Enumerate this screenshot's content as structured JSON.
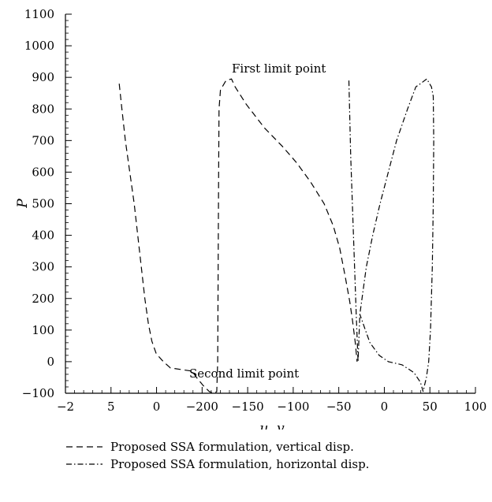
{
  "chart_data": {
    "type": "line",
    "xlabel": "u, v",
    "ylabel": "P",
    "ylim": [
      -100,
      1100
    ],
    "x_tick_labels": [
      "−2",
      "5",
      "0",
      "−200",
      "−150",
      "−100",
      "−50",
      "0",
      "50",
      "100"
    ],
    "y_ticks": [
      -100,
      0,
      100,
      200,
      300,
      400,
      500,
      600,
      700,
      800,
      900,
      1000,
      1100
    ],
    "y_tick_labels": [
      "−100",
      "0",
      "100",
      "200",
      "300",
      "400",
      "500",
      "600",
      "700",
      "800",
      "900",
      "1000",
      "1100"
    ],
    "annotations": [
      {
        "text": "First limit point"
      },
      {
        "text": "Second limit point"
      }
    ],
    "series": [
      {
        "name": "Proposed SSA formulation, vertical disp.",
        "style": "dashed",
        "points": [
          [
            4.0,
            880
          ],
          [
            3.7,
            800
          ],
          [
            3.3,
            700
          ],
          [
            2.8,
            600
          ],
          [
            2.3,
            500
          ],
          [
            1.9,
            400
          ],
          [
            1.5,
            300
          ],
          [
            1.1,
            200
          ],
          [
            0.7,
            120
          ],
          [
            0.3,
            65
          ],
          [
            -0.2,
            25
          ],
          [
            -1.0,
            0
          ],
          [
            -1.8,
            -20
          ],
          [
            -209,
            -30
          ],
          [
            -204,
            -50
          ],
          [
            -197,
            -75
          ],
          [
            -190,
            -95
          ],
          [
            -185,
            -100
          ],
          [
            -182,
            -95
          ],
          [
            -181,
            0
          ],
          [
            -180.5,
            300
          ],
          [
            -180,
            600
          ],
          [
            -179.5,
            800
          ],
          [
            -178,
            860
          ],
          [
            -172,
            890
          ],
          [
            -166,
            895
          ],
          [
            -162,
            870
          ],
          [
            -150,
            815
          ],
          [
            -130,
            740
          ],
          [
            -110,
            680
          ],
          [
            -95,
            630
          ],
          [
            -80,
            570
          ],
          [
            -65,
            500
          ],
          [
            -55,
            430
          ],
          [
            -48,
            360
          ],
          [
            -42,
            270
          ],
          [
            -37,
            190
          ],
          [
            -34,
            130
          ],
          [
            -31,
            60
          ],
          [
            -29,
            0
          ]
        ]
      },
      {
        "name": "Proposed SSA formulation, horizontal disp.",
        "style": "dashdot",
        "points": [
          [
            -38,
            890
          ],
          [
            -36,
            650
          ],
          [
            -33,
            400
          ],
          [
            -30,
            150
          ],
          [
            -28,
            0
          ],
          [
            -26,
            150
          ],
          [
            -19,
            300
          ],
          [
            -12,
            400
          ],
          [
            -4,
            500
          ],
          [
            5,
            600
          ],
          [
            14,
            700
          ],
          [
            26,
            800
          ],
          [
            35,
            870
          ],
          [
            40,
            880
          ],
          [
            47,
            895
          ],
          [
            52,
            870
          ],
          [
            54,
            840
          ],
          [
            54.5,
            700
          ],
          [
            54,
            500
          ],
          [
            53,
            300
          ],
          [
            51,
            100
          ],
          [
            49,
            0
          ],
          [
            46.5,
            -50
          ],
          [
            44.5,
            -75
          ],
          [
            43,
            -95
          ],
          [
            40,
            -65
          ],
          [
            33,
            -35
          ],
          [
            20,
            -10
          ],
          [
            5,
            0
          ],
          [
            -5,
            20
          ],
          [
            -15,
            60
          ],
          [
            -20,
            100
          ],
          [
            -26,
            150
          ]
        ]
      }
    ]
  }
}
